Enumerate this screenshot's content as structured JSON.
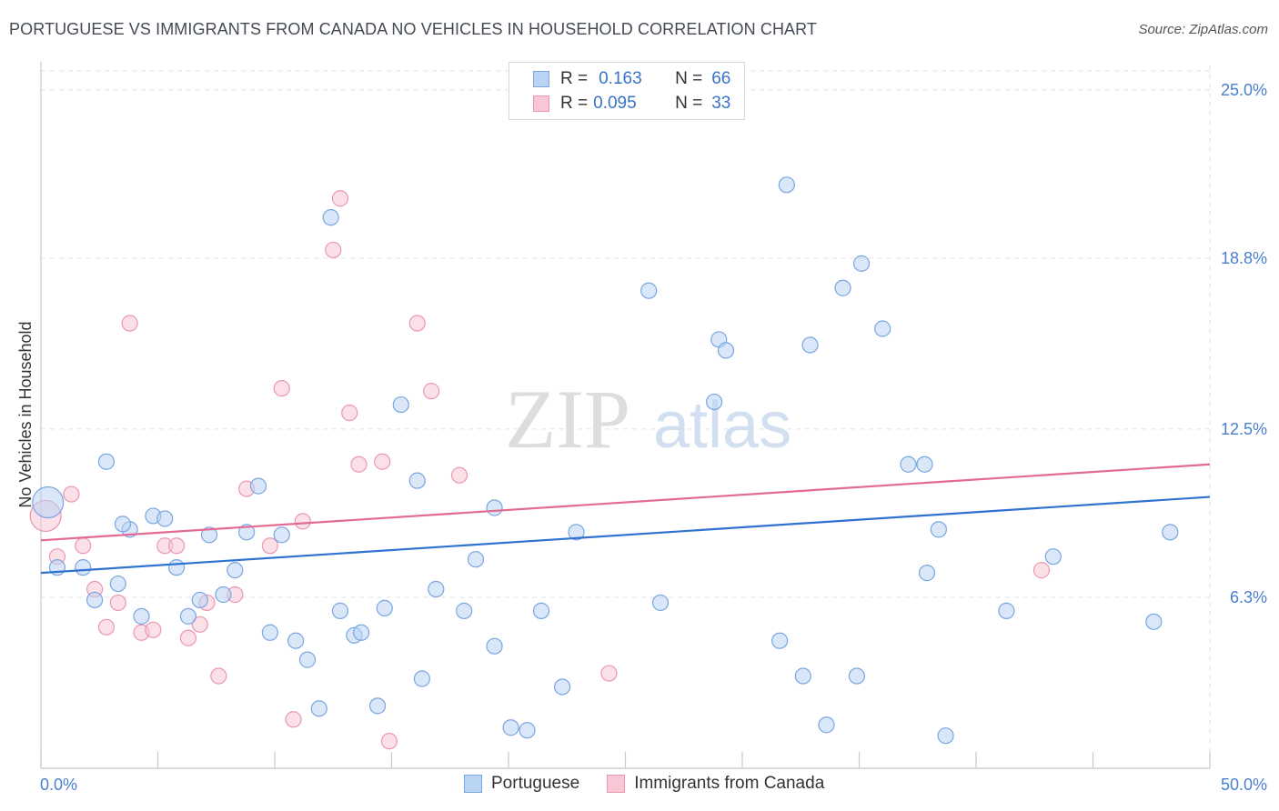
{
  "header": {
    "title": "PORTUGUESE VS IMMIGRANTS FROM CANADA NO VEHICLES IN HOUSEHOLD CORRELATION CHART",
    "source": "Source: ZipAtlas.com"
  },
  "legend": {
    "rows": [
      {
        "r_label": "R =",
        "r_value": "0.163",
        "n_label": "N =",
        "n_value": "66"
      },
      {
        "r_label": "R =",
        "r_value": "0.095",
        "n_label": "N =",
        "n_value": "33"
      }
    ]
  },
  "bottom_legend": [
    "Portuguese",
    "Immigrants from Canada"
  ],
  "watermark": {
    "zip": "ZIP",
    "atlas": "atlas"
  },
  "colors": {
    "blue_fill": "#b9d3f3",
    "blue_stroke": "#7aa6e0",
    "blue_line": "#2f72d0",
    "pink_fill": "#f8c6d5",
    "pink_stroke": "#eb97b0",
    "pink_line": "#e36a92",
    "tick_text": "#4a7fd0",
    "grid": "#e2e2e2"
  },
  "chart_data": {
    "type": "scatter",
    "title": "PORTUGUESE VS IMMIGRANTS FROM CANADA NO VEHICLES IN HOUSEHOLD CORRELATION CHART",
    "xlabel": "",
    "ylabel": "No Vehicles in Household",
    "xlim": [
      0,
      50
    ],
    "ylim": [
      0,
      25.9
    ],
    "x_tick_labels": [
      "0.0%",
      "50.0%"
    ],
    "y_ticks": [
      6.3,
      12.5,
      18.8,
      25.0
    ],
    "y_tick_labels": [
      "6.3%",
      "12.5%",
      "18.8%",
      "25.0%"
    ],
    "grid": true,
    "series": [
      {
        "name": "Portuguese",
        "color": "#7aa6e0",
        "points": [
          [
            0.3,
            9.8
          ],
          [
            0.7,
            7.4
          ],
          [
            1.8,
            7.4
          ],
          [
            2.3,
            6.2
          ],
          [
            2.8,
            11.3
          ],
          [
            3.3,
            6.8
          ],
          [
            3.8,
            8.8
          ],
          [
            4.3,
            5.6
          ],
          [
            4.8,
            9.3
          ],
          [
            5.3,
            9.2
          ],
          [
            5.8,
            7.4
          ],
          [
            6.3,
            5.6
          ],
          [
            6.8,
            6.2
          ],
          [
            7.2,
            8.6
          ],
          [
            7.8,
            6.4
          ],
          [
            8.3,
            7.3
          ],
          [
            8.8,
            8.7
          ],
          [
            9.3,
            10.4
          ],
          [
            9.8,
            5.0
          ],
          [
            10.3,
            8.6
          ],
          [
            10.9,
            4.7
          ],
          [
            11.4,
            4.0
          ],
          [
            11.9,
            2.2
          ],
          [
            12.4,
            20.3
          ],
          [
            12.8,
            5.8
          ],
          [
            13.4,
            4.9
          ],
          [
            13.7,
            5.0
          ],
          [
            14.4,
            2.3
          ],
          [
            14.7,
            5.9
          ],
          [
            15.4,
            13.4
          ],
          [
            16.1,
            10.6
          ],
          [
            16.3,
            3.3
          ],
          [
            16.9,
            6.6
          ],
          [
            18.1,
            5.8
          ],
          [
            18.6,
            7.7
          ],
          [
            19.4,
            4.5
          ],
          [
            19.4,
            9.6
          ],
          [
            20.1,
            1.5
          ],
          [
            20.8,
            1.4
          ],
          [
            21.4,
            5.8
          ],
          [
            22.3,
            3.0
          ],
          [
            22.9,
            8.7
          ],
          [
            26.0,
            17.6
          ],
          [
            26.5,
            6.1
          ],
          [
            28.8,
            13.5
          ],
          [
            29.0,
            15.8
          ],
          [
            29.3,
            15.4
          ],
          [
            31.6,
            4.7
          ],
          [
            31.9,
            21.5
          ],
          [
            32.6,
            3.4
          ],
          [
            32.9,
            15.6
          ],
          [
            33.6,
            1.6
          ],
          [
            34.3,
            17.7
          ],
          [
            34.9,
            3.4
          ],
          [
            35.1,
            18.6
          ],
          [
            36.0,
            16.2
          ],
          [
            37.1,
            11.2
          ],
          [
            37.8,
            11.2
          ],
          [
            38.4,
            8.8
          ],
          [
            37.9,
            7.2
          ],
          [
            38.7,
            1.2
          ],
          [
            41.3,
            5.8
          ],
          [
            43.3,
            7.8
          ],
          [
            47.6,
            5.4
          ],
          [
            48.3,
            8.7
          ],
          [
            3.5,
            9.0
          ]
        ]
      },
      {
        "name": "Immigrants from Canada",
        "color": "#eb97b0",
        "points": [
          [
            0.2,
            9.3
          ],
          [
            0.7,
            7.8
          ],
          [
            1.3,
            10.1
          ],
          [
            1.8,
            8.2
          ],
          [
            2.3,
            6.6
          ],
          [
            2.8,
            5.2
          ],
          [
            3.3,
            6.1
          ],
          [
            3.8,
            16.4
          ],
          [
            4.3,
            5.0
          ],
          [
            4.8,
            5.1
          ],
          [
            5.3,
            8.2
          ],
          [
            5.8,
            8.2
          ],
          [
            6.3,
            4.8
          ],
          [
            6.8,
            5.3
          ],
          [
            7.1,
            6.1
          ],
          [
            7.6,
            3.4
          ],
          [
            8.3,
            6.4
          ],
          [
            8.8,
            10.3
          ],
          [
            9.8,
            8.2
          ],
          [
            10.3,
            14.0
          ],
          [
            10.8,
            1.8
          ],
          [
            11.2,
            9.1
          ],
          [
            12.5,
            19.1
          ],
          [
            12.8,
            21.0
          ],
          [
            13.2,
            13.1
          ],
          [
            13.6,
            11.2
          ],
          [
            14.6,
            11.3
          ],
          [
            14.9,
            1.0
          ],
          [
            16.1,
            16.4
          ],
          [
            16.7,
            13.9
          ],
          [
            17.9,
            10.8
          ],
          [
            24.3,
            3.5
          ],
          [
            42.8,
            7.3
          ]
        ]
      }
    ],
    "trend_lines": [
      {
        "series": "Portuguese",
        "x": [
          0,
          50
        ],
        "y": [
          7.2,
          10.0
        ]
      },
      {
        "series": "Immigrants from Canada",
        "x": [
          0,
          50
        ],
        "y": [
          8.4,
          11.2
        ]
      }
    ]
  }
}
